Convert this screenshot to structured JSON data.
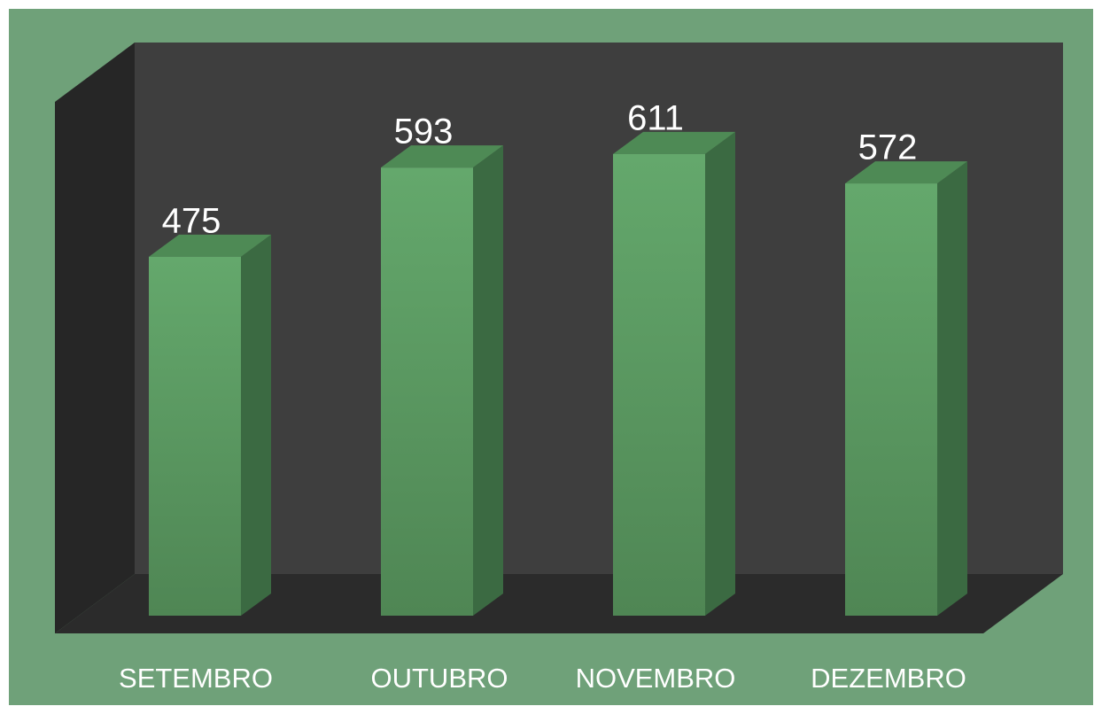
{
  "chart_data": {
    "type": "bar3d",
    "categories": [
      "SETEMBRO",
      "OUTUBRO",
      "NOVEMBRO",
      "DEZEMBRO"
    ],
    "values": [
      475,
      593,
      611,
      572
    ],
    "color": "#5e9e66"
  }
}
